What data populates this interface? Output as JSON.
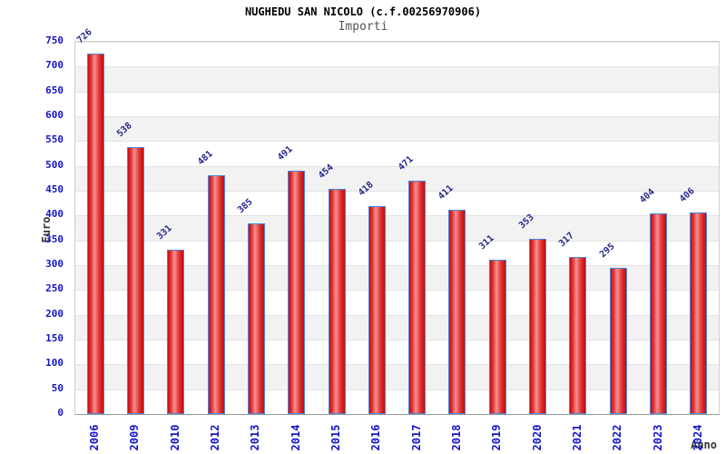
{
  "header": {
    "title": "NUGHEDU SAN NICOLO (c.f.00256970906)",
    "subtitle": "Importi"
  },
  "chart_data": {
    "type": "bar",
    "title": "NUGHEDU SAN NICOLO (c.f.00256970906)",
    "subtitle": "Importi",
    "xlabel": "Anno",
    "ylabel": "Euro",
    "categories": [
      "2006",
      "2009",
      "2010",
      "2012",
      "2013",
      "2014",
      "2015",
      "2016",
      "2017",
      "2018",
      "2019",
      "2020",
      "2021",
      "2022",
      "2023",
      "2024"
    ],
    "values": [
      726,
      538,
      331,
      481,
      385,
      491,
      454,
      418,
      471,
      411,
      311,
      353,
      317,
      295,
      404,
      406
    ],
    "ylim": [
      0,
      750
    ],
    "ytick_step": 50,
    "yticks": [
      0,
      50,
      100,
      150,
      200,
      250,
      300,
      350,
      400,
      450,
      500,
      550,
      600,
      650,
      700,
      750
    ],
    "legend": "none",
    "grid": "horizontal gridlines with alternating shaded bands",
    "colors": {
      "bar_fill": "#e03030",
      "bar_highlight": "#f59090",
      "bar_edge": "#bd0d0d",
      "bar_border": "#4a86e0",
      "ytick_label": "#1414cc",
      "xtick_label": "#1414cc",
      "value_label": "#26268c",
      "axis_title": "#333333",
      "band": "#f2f2f2",
      "gridline": "#e3e3e3",
      "background": "#ffffff"
    }
  }
}
